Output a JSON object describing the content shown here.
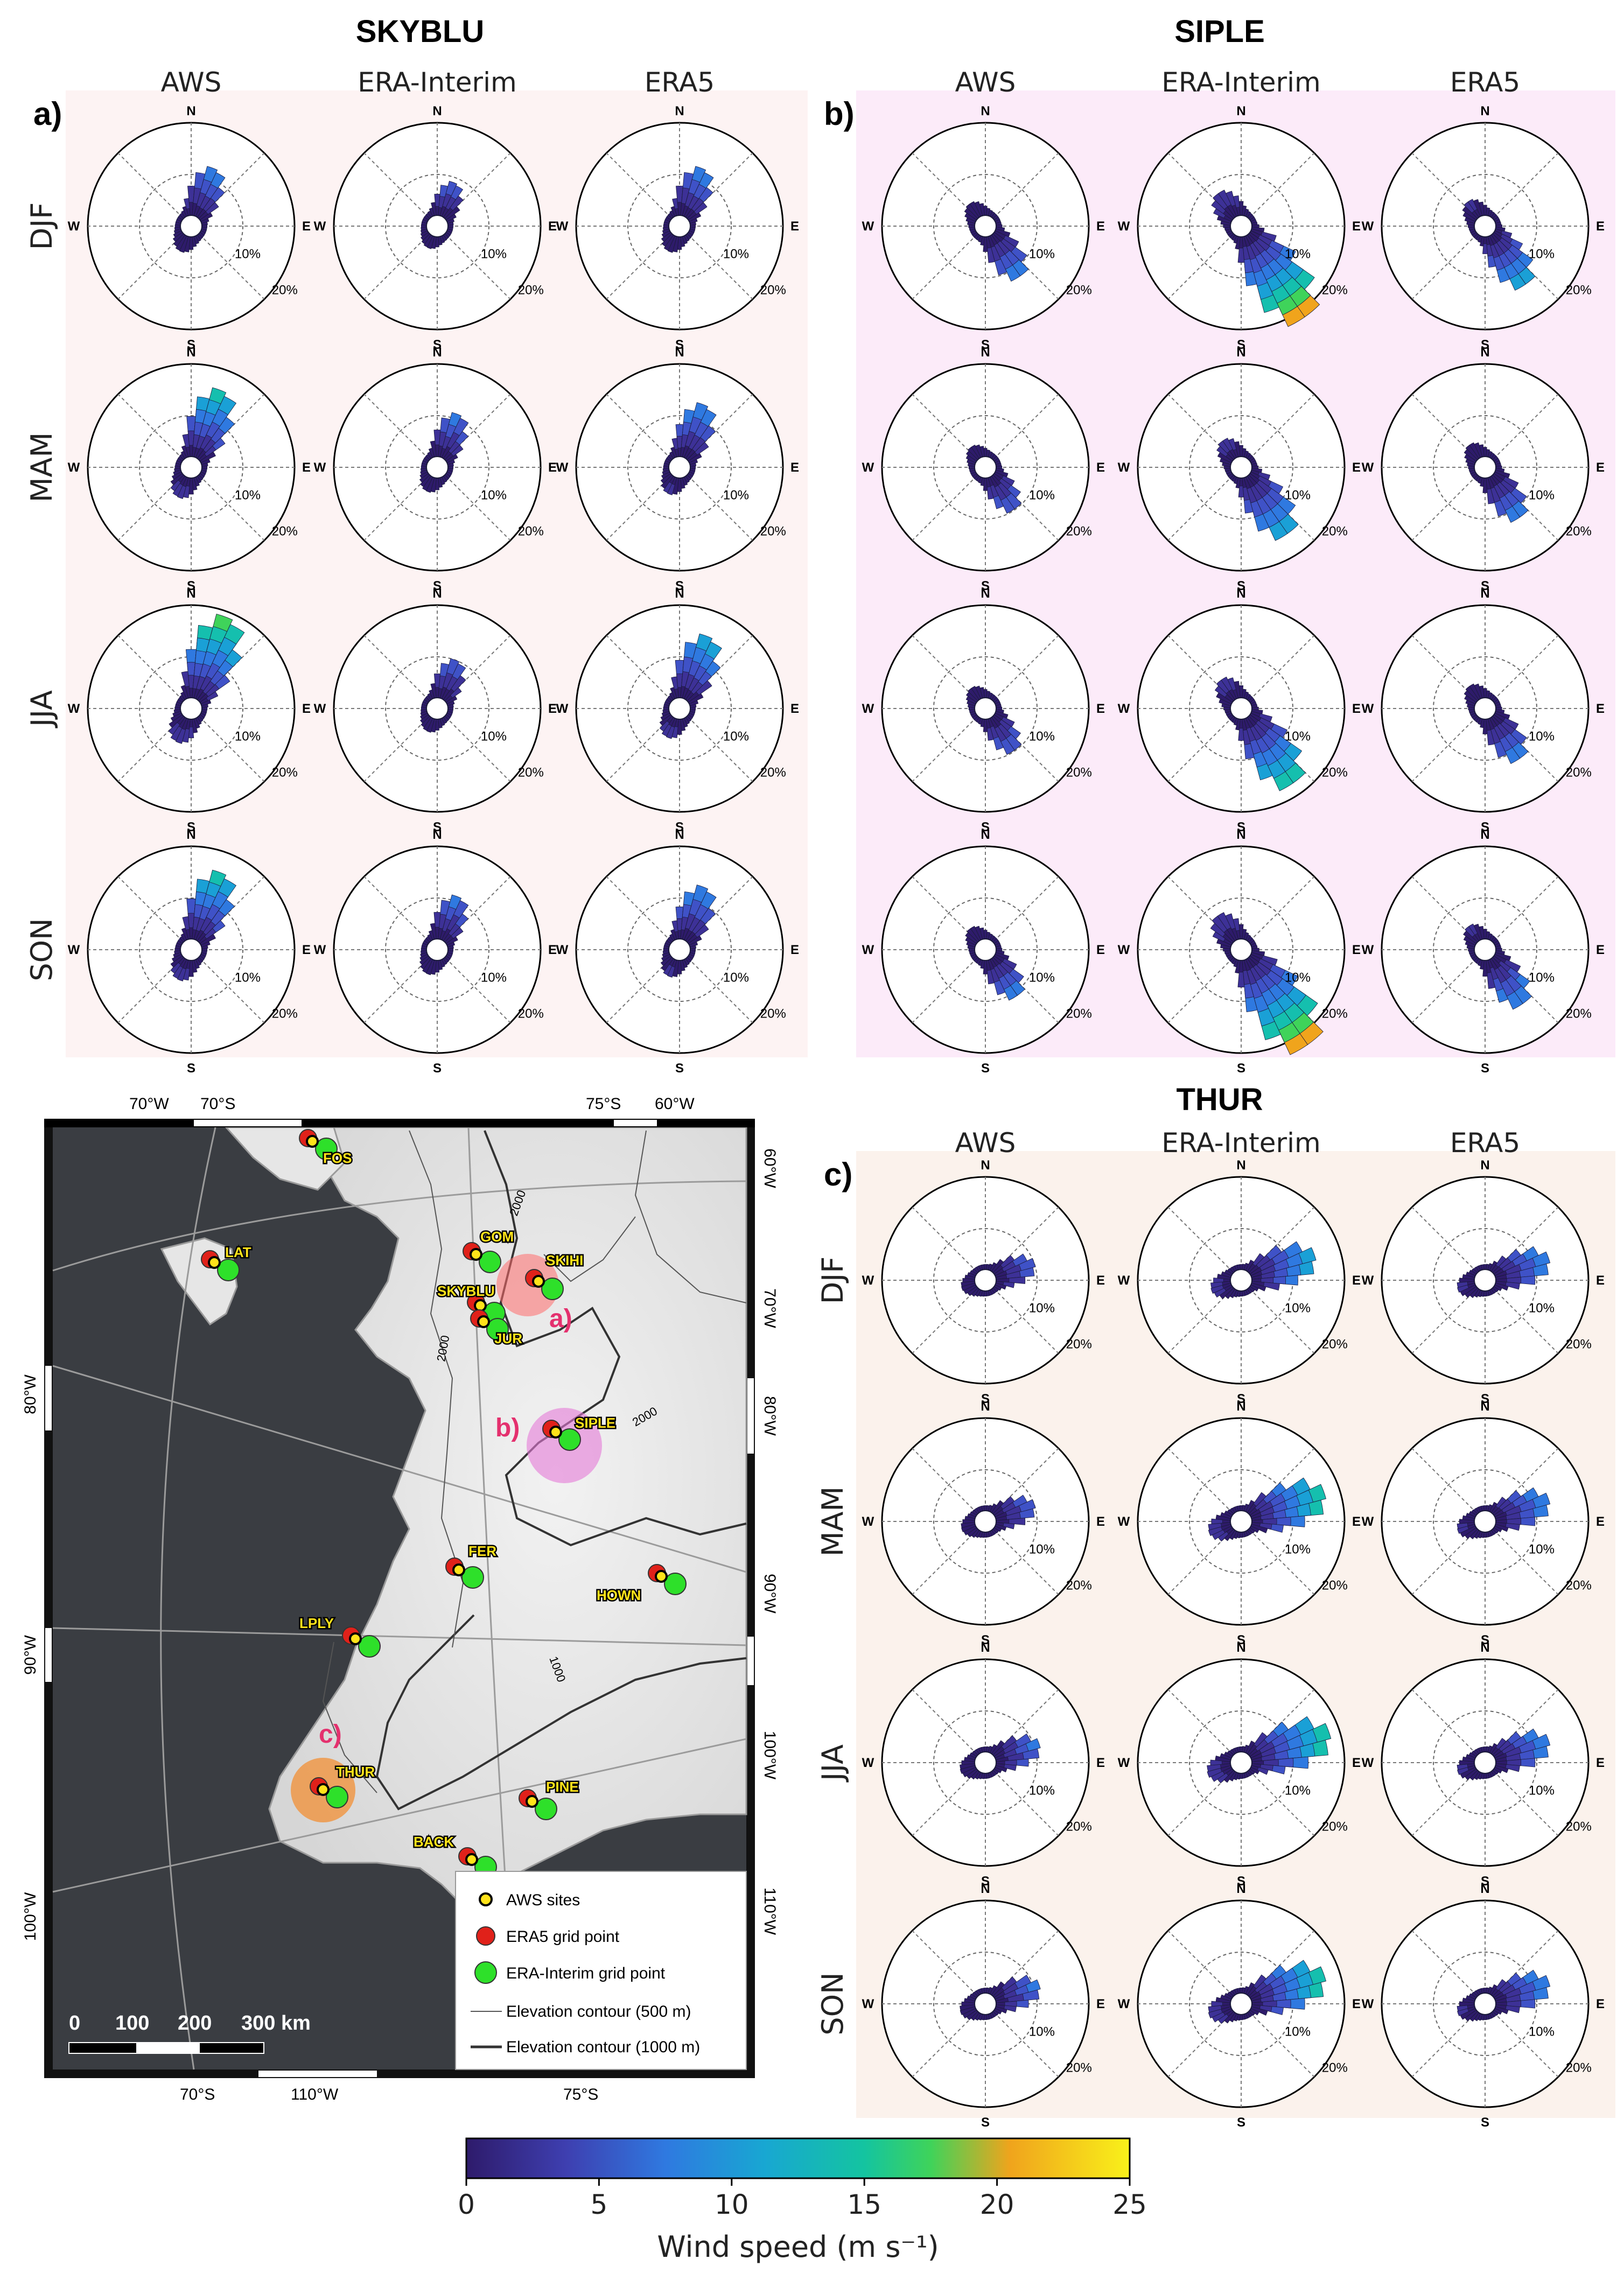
{
  "panels": [
    {
      "id": "a",
      "title": "SKYBLU",
      "panel_label": "a)"
    },
    {
      "id": "b",
      "title": "SIPLE",
      "panel_label": "b)"
    },
    {
      "id": "c",
      "title": "THUR",
      "panel_label": "c)"
    }
  ],
  "columns": [
    "AWS",
    "ERA-Interim",
    "ERA5"
  ],
  "seasons": [
    "DJF",
    "MAM",
    "JJA",
    "SON"
  ],
  "directions": {
    "n": "N",
    "e": "E",
    "s": "S",
    "w": "W"
  },
  "rings": [
    "10%",
    "20%"
  ],
  "colorbar": {
    "label": "Wind speed (m s⁻¹)",
    "ticks": [
      "0",
      "5",
      "10",
      "15",
      "20",
      "25"
    ],
    "colors": [
      "#2e1b6b",
      "#3e3fb0",
      "#2f79e0",
      "#18a7d2",
      "#14c4a0",
      "#3fd35a",
      "#f0a41c",
      "#f9f11a"
    ]
  },
  "map": {
    "top_labels": [
      "70°W",
      "70°S",
      "75°S",
      "60°W"
    ],
    "bottom_labels": [
      "70°S",
      "110°W",
      "75°S"
    ],
    "left_labels": [
      "80°W",
      "90°W",
      "100°W"
    ],
    "right_labels": [
      "60°W",
      "70°W",
      "80°W",
      "90°W",
      "100°W",
      "110°W"
    ],
    "contours": [
      "2000",
      "2000",
      "2000",
      "1000"
    ],
    "sites": [
      {
        "name": "FOS"
      },
      {
        "name": "LAT"
      },
      {
        "name": "GOM"
      },
      {
        "name": "SKIHI"
      },
      {
        "name": "SKYBLU"
      },
      {
        "name": "JUR"
      },
      {
        "name": "SIPLE"
      },
      {
        "name": "FER"
      },
      {
        "name": "HOWN"
      },
      {
        "name": "LPLY"
      },
      {
        "name": "THUR"
      },
      {
        "name": "PINE"
      },
      {
        "name": "BACK"
      }
    ],
    "highlight_labels": [
      "a)",
      "b)",
      "c)"
    ],
    "legend": [
      "AWS sites",
      "ERA5 grid point",
      "ERA-Interim grid point",
      "Elevation contour (500 m)",
      "Elevation contour (1000 m)"
    ],
    "scalebar": [
      "0",
      "100",
      "200",
      "300 km"
    ]
  },
  "chart_data": {
    "type": "wind-rose grid",
    "value_unit": "percent frequency by direction sector",
    "ring_ticks": [
      10,
      20
    ],
    "colorbar_range": [
      0,
      25
    ],
    "stations": {
      "SKYBLU": {
        "dominant_direction": "NNE",
        "AWS": {
          "DJF": 9,
          "MAM": 13,
          "JJA": 16,
          "SON": 13
        },
        "ERA-Interim": {
          "DJF": 6,
          "MAM": 8,
          "JJA": 7,
          "SON": 8
        },
        "ERA5": {
          "DJF": 9,
          "MAM": 10,
          "JJA": 12,
          "SON": 10
        }
      },
      "SIPLE": {
        "dominant_direction": "SE",
        "AWS": {
          "DJF": 9,
          "MAM": 7,
          "JJA": 7,
          "SON": 8
        },
        "ERA-Interim": {
          "DJF": 19,
          "MAM": 13,
          "JJA": 15,
          "SON": 20
        },
        "ERA5": {
          "DJF": 11,
          "MAM": 9,
          "JJA": 9,
          "SON": 10
        }
      },
      "THUR": {
        "dominant_direction": "ENE",
        "AWS": {
          "DJF": 7,
          "MAM": 7,
          "JJA": 8,
          "SON": 8
        },
        "ERA-Interim": {
          "DJF": 12,
          "MAM": 14,
          "JJA": 15,
          "SON": 14
        },
        "ERA5": {
          "DJF": 10,
          "MAM": 10,
          "JJA": 10,
          "SON": 10
        }
      }
    }
  }
}
